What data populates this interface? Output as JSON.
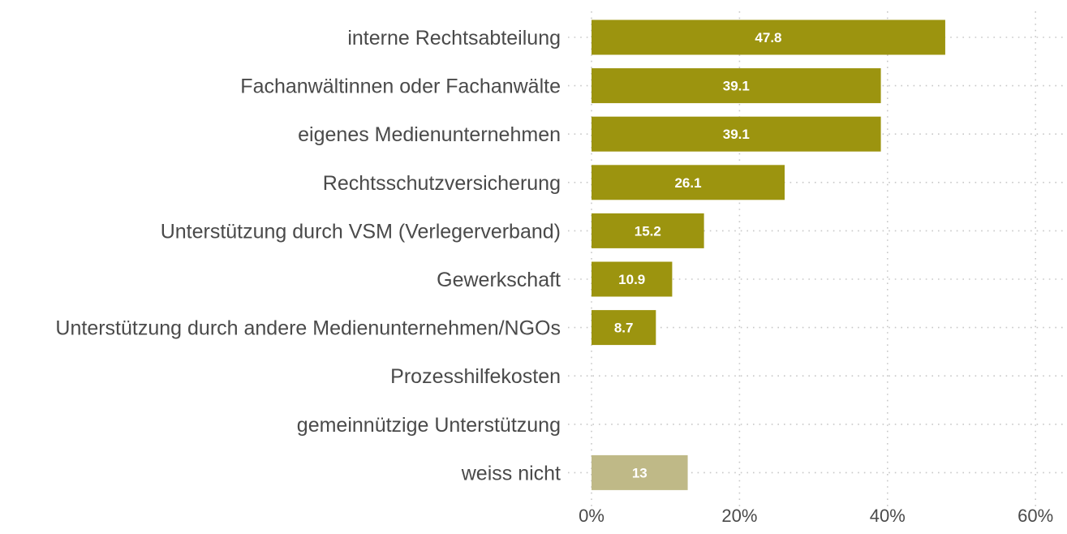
{
  "chart_data": {
    "type": "bar",
    "orientation": "horizontal",
    "title": "",
    "xlabel": "",
    "ylabel": "",
    "xlim": [
      0,
      62
    ],
    "x_ticks": [
      0,
      20,
      40,
      60
    ],
    "x_tick_labels": [
      "0%",
      "20%",
      "40%",
      "60%"
    ],
    "grid": true,
    "legend": "none",
    "categories": [
      "interne Rechtsabteilung",
      "Fachanwältinnen oder Fachanwälte",
      "eigenes Medienunternehmen",
      "Rechtsschutzversicherung",
      "Unterstützung durch VSM (Verlegerverband)",
      "Gewerkschaft",
      "Unterstützung durch andere Medienunternehmen/NGOs",
      "Prozesshilfekosten",
      "gemeinnützige Unterstützung",
      "weiss nicht"
    ],
    "values": [
      47.8,
      39.1,
      39.1,
      26.1,
      15.2,
      10.9,
      8.7,
      0,
      0,
      13
    ],
    "value_labels": [
      "47.8",
      "39.1",
      "39.1",
      "26.1",
      "15.2",
      "10.9",
      "8.7",
      "",
      "",
      "13"
    ],
    "bar_colors": [
      "#9c940f",
      "#9c940f",
      "#9c940f",
      "#9c940f",
      "#9c940f",
      "#9c940f",
      "#9c940f",
      "#9c940f",
      "#9c940f",
      "#bfb987"
    ]
  }
}
